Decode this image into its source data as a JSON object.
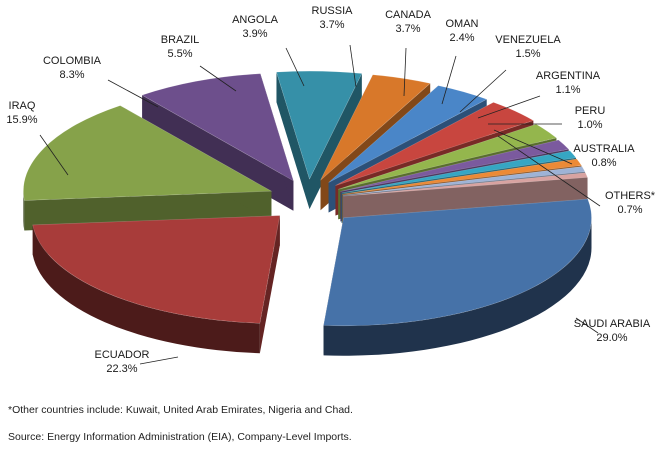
{
  "chart_data": {
    "type": "pie",
    "title": "",
    "style": "3d-exploded",
    "legend": "none",
    "slices": [
      {
        "name": "SAUDI ARABIA",
        "value": 29.0,
        "label": "29.0%",
        "color": "#4672a8"
      },
      {
        "name": "ECUADOR",
        "value": 22.3,
        "label": "22.3%",
        "color": "#a83c3a"
      },
      {
        "name": "IRAQ",
        "value": 15.9,
        "label": "15.9%",
        "color": "#86a24a"
      },
      {
        "name": "COLOMBIA",
        "value": 8.3,
        "label": "8.3%",
        "color": "#6d4f8c"
      },
      {
        "name": "BRAZIL",
        "value": 5.5,
        "label": "5.5%",
        "color": "#3690a8"
      },
      {
        "name": "ANGOLA",
        "value": 3.9,
        "label": "3.9%",
        "color": "#d8782a"
      },
      {
        "name": "RUSSIA",
        "value": 3.7,
        "label": "3.7%",
        "color": "#4a86c8"
      },
      {
        "name": "CANADA",
        "value": 3.7,
        "label": "3.7%",
        "color": "#c8463f"
      },
      {
        "name": "OMAN",
        "value": 2.4,
        "label": "2.4%",
        "color": "#94b64d"
      },
      {
        "name": "VENEZUELA",
        "value": 1.5,
        "label": "1.5%",
        "color": "#7b5a9e"
      },
      {
        "name": "ARGENTINA",
        "value": 1.1,
        "label": "1.1%",
        "color": "#36a6c3"
      },
      {
        "name": "PERU",
        "value": 1.0,
        "label": "1.0%",
        "color": "#ec8a36"
      },
      {
        "name": "AUSTRALIA",
        "value": 0.8,
        "label": "0.8%",
        "color": "#9eb3d6"
      },
      {
        "name": "OTHERS*",
        "value": 0.7,
        "label": "0.7%",
        "color": "#d8a3a1"
      }
    ]
  },
  "footnotes": {
    "others_note": "*Other countries include: Kuwait, United Arab Emirates, Nigeria and Chad.",
    "source": "Source: Energy Information Administration (EIA), Company-Level Imports."
  }
}
